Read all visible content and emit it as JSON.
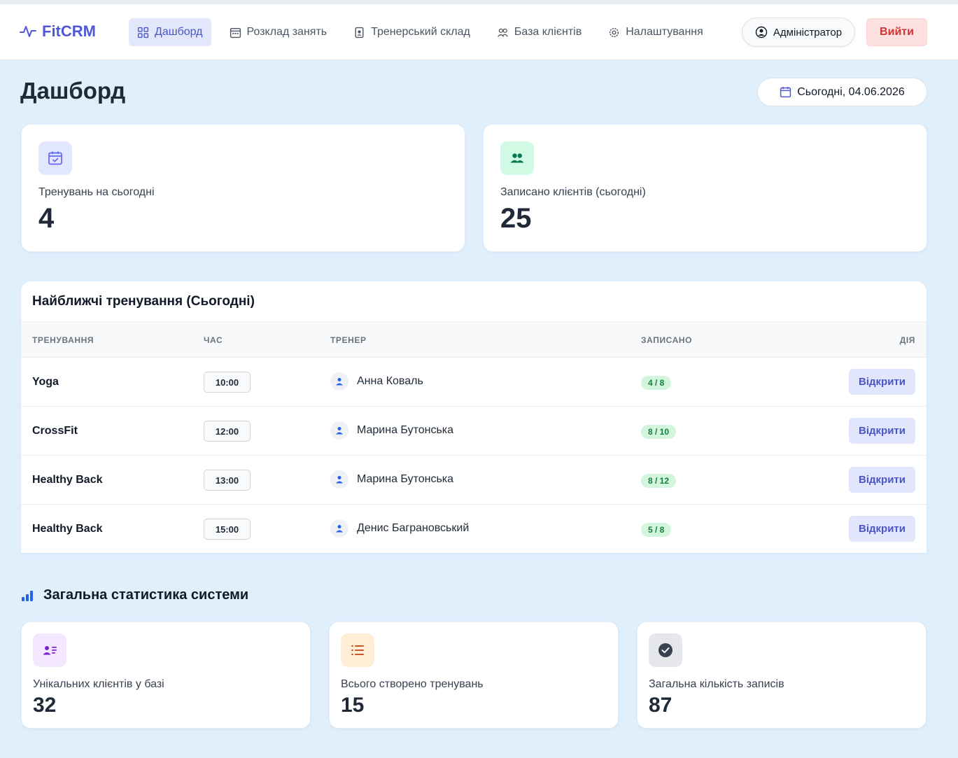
{
  "app": {
    "name": "FitCRM"
  },
  "nav": [
    {
      "label": "Дашборд",
      "icon": "grid-icon",
      "active": true
    },
    {
      "label": "Розклад занять",
      "icon": "calendar-schedule-icon"
    },
    {
      "label": "Тренерський склад",
      "icon": "badge-icon"
    },
    {
      "label": "База клієнтів",
      "icon": "users-icon"
    },
    {
      "label": "Налаштування",
      "icon": "gear-icon"
    }
  ],
  "user": {
    "label": "Адміністратор"
  },
  "logout": {
    "label": "Вийти"
  },
  "page": {
    "title": "Дашборд",
    "date": "Сьогодні, 04.06.2026"
  },
  "today_stats": [
    {
      "label": "Тренувань на сьогодні",
      "value": "4",
      "icon": "calendar-check-icon",
      "color": "#6366f1"
    },
    {
      "label": "Записано клієнтів (сьогодні)",
      "value": "25",
      "icon": "users-icon",
      "color": "#047857"
    }
  ],
  "upcoming": {
    "title": "Найближчі тренування (Сьогодні)",
    "columns": [
      "ТРЕНУВАННЯ",
      "ЧАС",
      "ТРЕНЕР",
      "ЗАПИСАНО",
      "ДІЯ"
    ],
    "rows": [
      {
        "name": "Yoga",
        "time": "10:00",
        "trainer": "Анна Коваль",
        "booked": "4 / 8",
        "action": "Відкрити"
      },
      {
        "name": "CrossFit",
        "time": "12:00",
        "trainer": "Марина Бутонська",
        "booked": "8 / 10",
        "action": "Відкрити"
      },
      {
        "name": "Healthy Back",
        "time": "13:00",
        "trainer": "Марина Бутонська",
        "booked": "8 / 12",
        "action": "Відкрити"
      },
      {
        "name": "Healthy Back",
        "time": "15:00",
        "trainer": "Денис Баграновський",
        "booked": "5 / 8",
        "action": "Відкрити"
      }
    ]
  },
  "system": {
    "title": "Загальна статистика системи",
    "stats": [
      {
        "label": "Унікальних клієнтів у базі",
        "value": "32",
        "icon": "contact-card-icon",
        "color": "#7e22ce"
      },
      {
        "label": "Всього створено тренувань",
        "value": "15",
        "icon": "list-icon",
        "color": "#c2410c"
      },
      {
        "label": "Загальна кількість записів",
        "value": "87",
        "icon": "check-circle-icon",
        "color": "#374151"
      }
    ]
  }
}
